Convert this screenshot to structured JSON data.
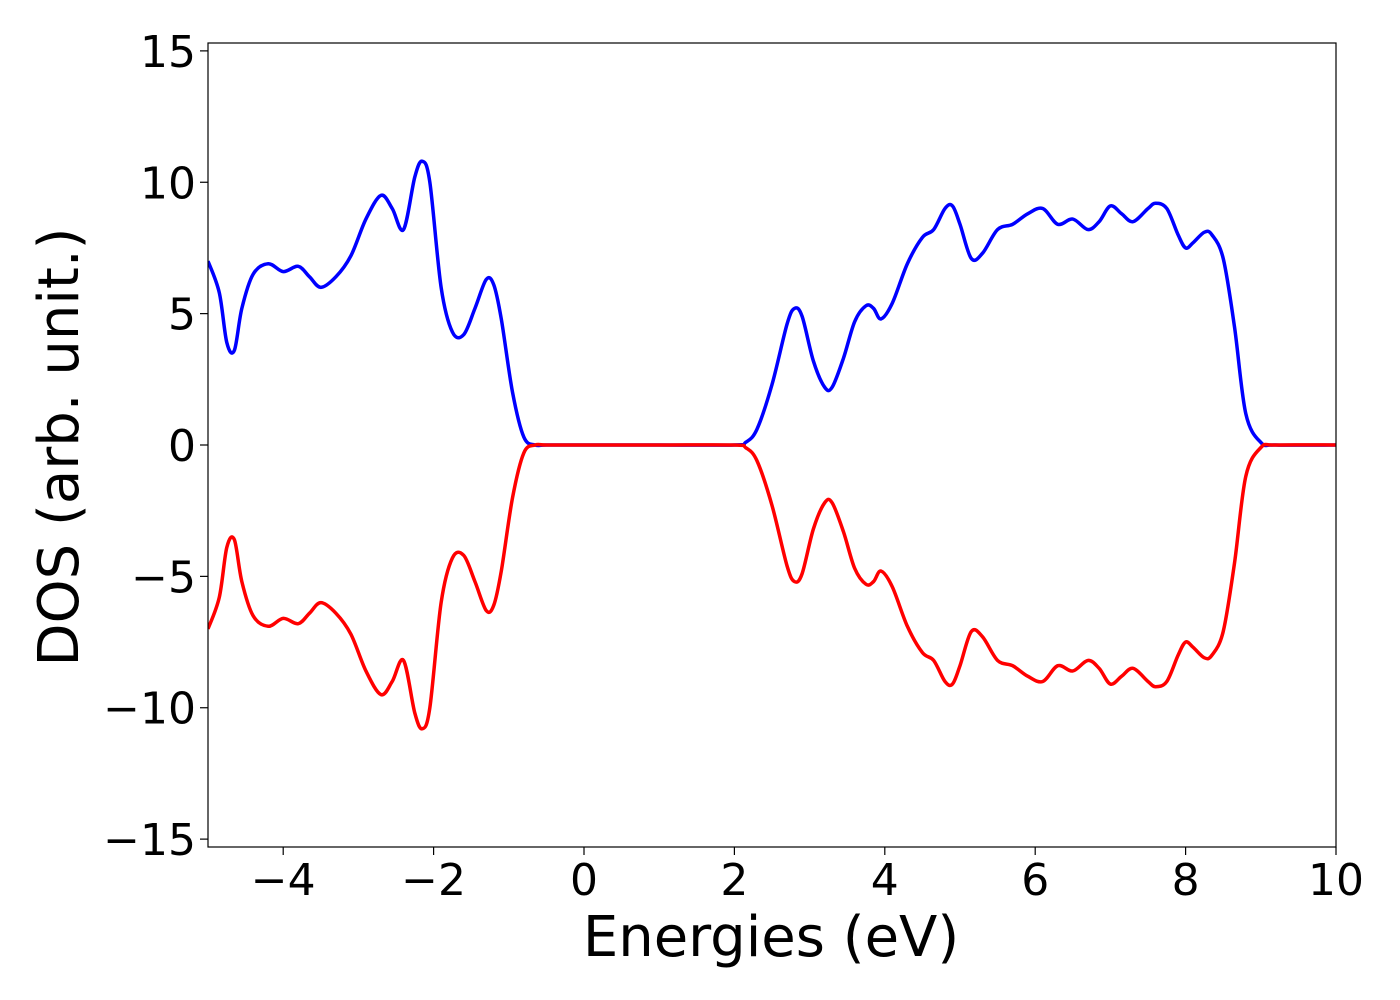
{
  "chart_data": {
    "type": "line",
    "title": "",
    "xlabel": "Energies (eV)",
    "ylabel": "DOS (arb. unit.)",
    "xlim": [
      -5,
      10
    ],
    "ylim": [
      -15.3,
      15.3
    ],
    "x_ticks": [
      -4,
      -2,
      0,
      2,
      4,
      6,
      8,
      10
    ],
    "y_ticks": [
      -15,
      -10,
      -5,
      0,
      5,
      10,
      15
    ],
    "x_tick_labels": [
      "−4",
      "−2",
      "0",
      "2",
      "4",
      "6",
      "8",
      "10"
    ],
    "y_tick_labels": [
      "−15",
      "−10",
      "−5",
      "0",
      "5",
      "10",
      "15"
    ],
    "grid": false,
    "legend": "none",
    "series": [
      {
        "color": "#0000ff",
        "x": [
          -5.0,
          -4.85,
          -4.75,
          -4.65,
          -4.55,
          -4.4,
          -4.2,
          -4.0,
          -3.8,
          -3.65,
          -3.5,
          -3.3,
          -3.1,
          -2.9,
          -2.7,
          -2.55,
          -2.4,
          -2.25,
          -2.15,
          -2.05,
          -1.9,
          -1.75,
          -1.6,
          -1.45,
          -1.3,
          -1.2,
          -1.1,
          -0.95,
          -0.8,
          -0.65,
          -0.5,
          0.0,
          1.0,
          2.0,
          2.15,
          2.3,
          2.5,
          2.7,
          2.8,
          2.9,
          3.05,
          3.2,
          3.3,
          3.45,
          3.6,
          3.75,
          3.85,
          3.95,
          4.1,
          4.3,
          4.5,
          4.65,
          4.8,
          4.9,
          5.0,
          5.15,
          5.3,
          5.5,
          5.7,
          5.9,
          6.1,
          6.3,
          6.5,
          6.7,
          6.85,
          7.0,
          7.15,
          7.3,
          7.5,
          7.6,
          7.75,
          7.9,
          8.0,
          8.1,
          8.25,
          8.35,
          8.5,
          8.65,
          8.8,
          9.0,
          9.2,
          10.0
        ],
        "y": [
          7.0,
          5.8,
          3.9,
          3.6,
          5.2,
          6.5,
          6.9,
          6.6,
          6.8,
          6.4,
          6.0,
          6.4,
          7.2,
          8.6,
          9.5,
          9.0,
          8.2,
          10.2,
          10.8,
          10.0,
          6.0,
          4.3,
          4.2,
          5.2,
          6.3,
          6.1,
          4.8,
          2.0,
          0.3,
          0.0,
          0.0,
          0.0,
          0.0,
          0.0,
          0.1,
          0.6,
          2.3,
          4.6,
          5.2,
          4.9,
          3.2,
          2.2,
          2.2,
          3.3,
          4.7,
          5.3,
          5.2,
          4.8,
          5.4,
          6.9,
          7.9,
          8.2,
          9.0,
          9.1,
          8.4,
          7.1,
          7.3,
          8.2,
          8.4,
          8.8,
          9.0,
          8.4,
          8.6,
          8.2,
          8.5,
          9.1,
          8.8,
          8.5,
          9.0,
          9.2,
          9.0,
          8.0,
          7.5,
          7.7,
          8.1,
          8.0,
          7.1,
          4.5,
          1.2,
          0.1,
          0.0,
          0.0
        ]
      },
      {
        "color": "#ff0000",
        "x": [
          -5.0,
          -4.85,
          -4.75,
          -4.65,
          -4.55,
          -4.4,
          -4.2,
          -4.0,
          -3.8,
          -3.65,
          -3.5,
          -3.3,
          -3.1,
          -2.9,
          -2.7,
          -2.55,
          -2.4,
          -2.25,
          -2.15,
          -2.05,
          -1.9,
          -1.75,
          -1.6,
          -1.45,
          -1.3,
          -1.2,
          -1.1,
          -0.95,
          -0.8,
          -0.65,
          -0.5,
          0.0,
          1.0,
          2.0,
          2.15,
          2.3,
          2.5,
          2.7,
          2.8,
          2.9,
          3.05,
          3.2,
          3.3,
          3.45,
          3.6,
          3.75,
          3.85,
          3.95,
          4.1,
          4.3,
          4.5,
          4.65,
          4.8,
          4.9,
          5.0,
          5.15,
          5.3,
          5.5,
          5.7,
          5.9,
          6.1,
          6.3,
          6.5,
          6.7,
          6.85,
          7.0,
          7.15,
          7.3,
          7.5,
          7.6,
          7.75,
          7.9,
          8.0,
          8.1,
          8.25,
          8.35,
          8.5,
          8.65,
          8.8,
          9.0,
          9.2,
          10.0
        ],
        "y": [
          -7.0,
          -5.8,
          -3.9,
          -3.6,
          -5.2,
          -6.5,
          -6.9,
          -6.6,
          -6.8,
          -6.4,
          -6.0,
          -6.4,
          -7.2,
          -8.6,
          -9.5,
          -9.0,
          -8.2,
          -10.2,
          -10.8,
          -10.0,
          -6.0,
          -4.3,
          -4.2,
          -5.2,
          -6.3,
          -6.1,
          -4.8,
          -2.0,
          -0.3,
          0.0,
          0.0,
          0.0,
          0.0,
          0.0,
          -0.1,
          -0.6,
          -2.3,
          -4.6,
          -5.2,
          -4.9,
          -3.2,
          -2.2,
          -2.2,
          -3.3,
          -4.7,
          -5.3,
          -5.2,
          -4.8,
          -5.4,
          -6.9,
          -7.9,
          -8.2,
          -9.0,
          -9.1,
          -8.4,
          -7.1,
          -7.3,
          -8.2,
          -8.4,
          -8.8,
          -9.0,
          -8.4,
          -8.6,
          -8.2,
          -8.5,
          -9.1,
          -8.8,
          -8.5,
          -9.0,
          -9.2,
          -9.0,
          -8.0,
          -7.5,
          -7.7,
          -8.1,
          -8.0,
          -7.1,
          -4.5,
          -1.2,
          -0.1,
          0.0,
          0.0
        ]
      }
    ]
  }
}
